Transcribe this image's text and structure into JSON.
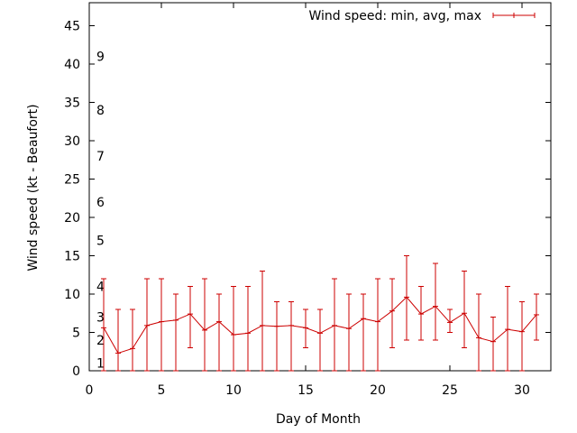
{
  "chart_data": {
    "type": "line",
    "xlabel": "Day of Month",
    "ylabel": "Wind speed (kt - Beaufort)",
    "xlim": [
      0,
      32
    ],
    "ylim": [
      0,
      48
    ],
    "xticks": [
      0,
      5,
      10,
      15,
      20,
      25,
      30
    ],
    "yticks": [
      0,
      5,
      10,
      15,
      20,
      25,
      30,
      35,
      40,
      45
    ],
    "grid": false,
    "legend": "top-right",
    "beaufort_scale": [
      {
        "label": "1",
        "value": 1
      },
      {
        "label": "2",
        "value": 4
      },
      {
        "label": "3",
        "value": 7
      },
      {
        "label": "4",
        "value": 11
      },
      {
        "label": "5",
        "value": 17
      },
      {
        "label": "6",
        "value": 22
      },
      {
        "label": "7",
        "value": 28
      },
      {
        "label": "8",
        "value": 34
      },
      {
        "label": "9",
        "value": 41
      }
    ],
    "series": [
      {
        "name": "Wind speed: min, avg, max",
        "color": "#cc0000",
        "x": [
          1,
          2,
          3,
          4,
          5,
          6,
          7,
          8,
          9,
          10,
          11,
          12,
          13,
          14,
          15,
          16,
          17,
          18,
          19,
          20,
          21,
          22,
          23,
          24,
          25,
          26,
          27,
          28,
          29,
          30,
          31
        ],
        "avg": [
          5.6,
          2.3,
          2.9,
          5.9,
          6.4,
          6.6,
          7.4,
          5.3,
          6.4,
          4.7,
          4.9,
          5.9,
          5.8,
          5.9,
          5.6,
          4.9,
          5.9,
          5.5,
          6.8,
          6.4,
          7.8,
          9.6,
          7.4,
          8.4,
          6.3,
          7.5,
          4.3,
          3.8,
          5.4,
          5.1,
          7.3
        ],
        "min": [
          0,
          0,
          0,
          0,
          0,
          0,
          3,
          0,
          0,
          0,
          0,
          0,
          0,
          0,
          3,
          0,
          0,
          0,
          0,
          0,
          3,
          4,
          4,
          4,
          5,
          3,
          0,
          0,
          0,
          0,
          4
        ],
        "max": [
          12,
          8,
          8,
          12,
          12,
          10,
          11,
          12,
          10,
          11,
          11,
          13,
          9,
          9,
          8,
          8,
          12,
          10,
          10,
          12,
          12,
          15,
          11,
          14,
          8,
          13,
          10,
          7,
          11,
          9,
          10
        ]
      }
    ]
  }
}
